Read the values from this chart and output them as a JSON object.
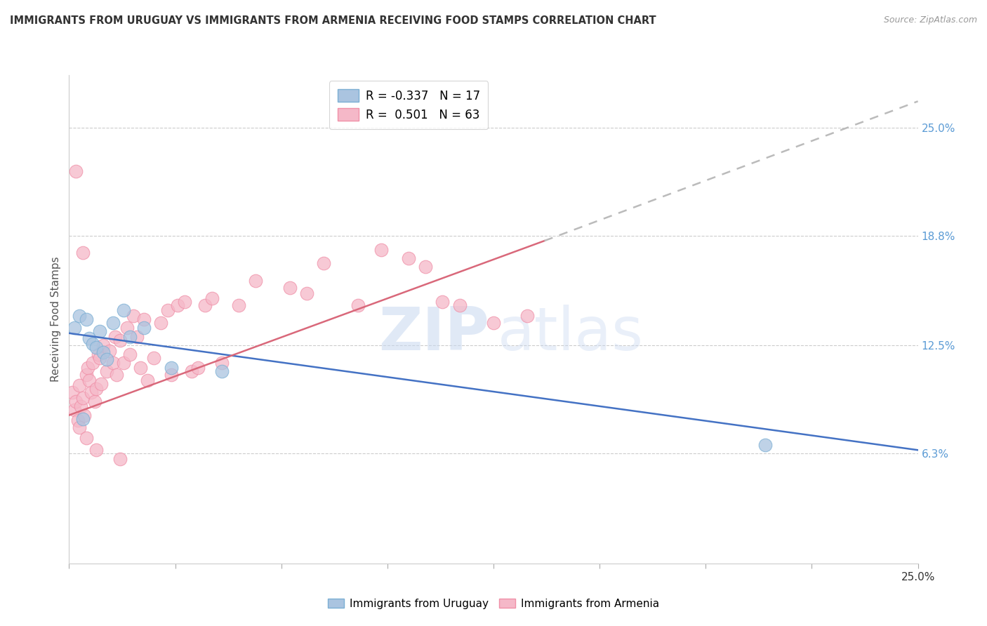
{
  "title": "IMMIGRANTS FROM URUGUAY VS IMMIGRANTS FROM ARMENIA RECEIVING FOOD STAMPS CORRELATION CHART",
  "source": "Source: ZipAtlas.com",
  "ylabel": "Receiving Food Stamps",
  "xlim": [
    0.0,
    25.0
  ],
  "ylim": [
    0.0,
    28.0
  ],
  "xtick_positions": [
    0.0,
    3.125,
    6.25,
    9.375,
    12.5,
    15.625,
    18.75,
    21.875,
    25.0
  ],
  "xtick_labels_show": {
    "0": "0.0%",
    "25.0": "25.0%"
  },
  "yticks_right": [
    6.3,
    12.5,
    18.8,
    25.0
  ],
  "ytick_labels_right": [
    "6.3%",
    "12.5%",
    "18.8%",
    "25.0%"
  ],
  "grid_color": "#cccccc",
  "background_color": "#ffffff",
  "uruguay_color": "#aac4e0",
  "armenia_color": "#f5b8c8",
  "uruguay_edge_color": "#7bafd4",
  "armenia_edge_color": "#f090a8",
  "uruguay_label": "Immigrants from Uruguay",
  "armenia_label": "Immigrants from Armenia",
  "uruguay_R": "-0.337",
  "uruguay_N": "17",
  "armenia_R": "0.501",
  "armenia_N": "63",
  "uruguay_line_color": "#4472c4",
  "armenia_line_color": "#d9687a",
  "extrapolation_color": "#bbbbbb",
  "uruguay_line_x0": 0.0,
  "uruguay_line_y0": 13.2,
  "uruguay_line_x1": 25.0,
  "uruguay_line_y1": 6.5,
  "armenia_solid_x0": 0.0,
  "armenia_solid_y0": 8.5,
  "armenia_solid_x1": 14.0,
  "armenia_solid_y1": 18.5,
  "armenia_dash_x1": 25.0,
  "armenia_dash_y1": 26.5,
  "uruguay_scatter": [
    [
      0.15,
      13.5
    ],
    [
      0.3,
      14.2
    ],
    [
      0.5,
      14.0
    ],
    [
      0.6,
      12.9
    ],
    [
      0.7,
      12.6
    ],
    [
      0.8,
      12.4
    ],
    [
      0.9,
      13.3
    ],
    [
      1.0,
      12.1
    ],
    [
      1.1,
      11.7
    ],
    [
      1.3,
      13.8
    ],
    [
      1.6,
      14.5
    ],
    [
      1.8,
      13.0
    ],
    [
      2.2,
      13.5
    ],
    [
      3.0,
      11.2
    ],
    [
      4.5,
      11.0
    ],
    [
      0.4,
      8.3
    ],
    [
      20.5,
      6.8
    ]
  ],
  "armenia_scatter": [
    [
      0.1,
      9.8
    ],
    [
      0.15,
      8.8
    ],
    [
      0.2,
      9.3
    ],
    [
      0.25,
      8.2
    ],
    [
      0.3,
      10.2
    ],
    [
      0.35,
      9.0
    ],
    [
      0.4,
      9.5
    ],
    [
      0.45,
      8.5
    ],
    [
      0.5,
      10.8
    ],
    [
      0.55,
      11.2
    ],
    [
      0.6,
      10.5
    ],
    [
      0.65,
      9.8
    ],
    [
      0.7,
      11.5
    ],
    [
      0.75,
      9.3
    ],
    [
      0.8,
      10.0
    ],
    [
      0.85,
      12.0
    ],
    [
      0.9,
      11.8
    ],
    [
      0.95,
      10.3
    ],
    [
      1.0,
      12.5
    ],
    [
      1.1,
      11.0
    ],
    [
      1.2,
      12.2
    ],
    [
      1.3,
      11.5
    ],
    [
      1.35,
      13.0
    ],
    [
      1.4,
      10.8
    ],
    [
      1.5,
      12.8
    ],
    [
      1.6,
      11.5
    ],
    [
      1.7,
      13.5
    ],
    [
      1.8,
      12.0
    ],
    [
      1.9,
      14.2
    ],
    [
      2.0,
      13.0
    ],
    [
      2.1,
      11.2
    ],
    [
      2.2,
      14.0
    ],
    [
      2.3,
      10.5
    ],
    [
      2.5,
      11.8
    ],
    [
      2.7,
      13.8
    ],
    [
      2.9,
      14.5
    ],
    [
      3.0,
      10.8
    ],
    [
      3.2,
      14.8
    ],
    [
      3.4,
      15.0
    ],
    [
      3.6,
      11.0
    ],
    [
      3.8,
      11.2
    ],
    [
      4.0,
      14.8
    ],
    [
      4.2,
      15.2
    ],
    [
      4.5,
      11.5
    ],
    [
      5.0,
      14.8
    ],
    [
      5.5,
      16.2
    ],
    [
      6.5,
      15.8
    ],
    [
      7.0,
      15.5
    ],
    [
      7.5,
      17.2
    ],
    [
      8.5,
      14.8
    ],
    [
      9.2,
      18.0
    ],
    [
      10.0,
      17.5
    ],
    [
      10.5,
      17.0
    ],
    [
      11.0,
      15.0
    ],
    [
      11.5,
      14.8
    ],
    [
      12.5,
      13.8
    ],
    [
      13.5,
      14.2
    ],
    [
      0.3,
      7.8
    ],
    [
      0.5,
      7.2
    ],
    [
      0.8,
      6.5
    ],
    [
      1.5,
      6.0
    ],
    [
      0.2,
      22.5
    ],
    [
      0.4,
      17.8
    ]
  ]
}
